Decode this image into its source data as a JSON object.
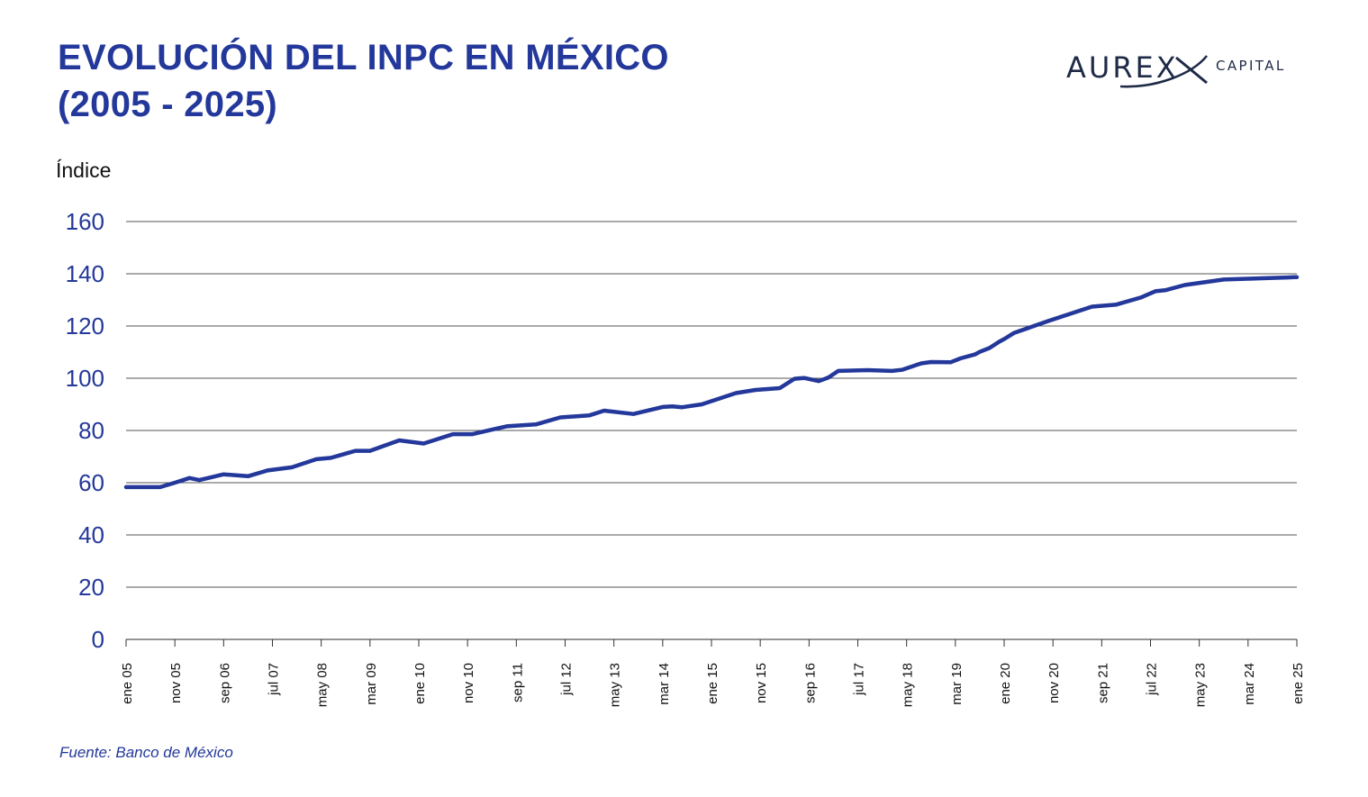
{
  "header": {
    "title_line1": "EVOLUCIÓN DEL INPC EN MÉXICO",
    "title_line2": "(2005 - 2025)"
  },
  "logo": {
    "main_text": "AUREX",
    "sub_text": "CAPITAL",
    "color": "#1e2a46"
  },
  "colors": {
    "title": "#23389a",
    "series": "#23389a",
    "tick": "#23389a",
    "grid": "#555555",
    "axis_label": "#111111"
  },
  "chart_data": {
    "type": "line",
    "title": "EVOLUCIÓN DEL INPC EN MÉXICO (2005 - 2025)",
    "xlabel": "",
    "ylabel": "Índice",
    "ylim": [
      0,
      160
    ],
    "yticks": [
      0,
      20,
      40,
      60,
      80,
      100,
      120,
      140,
      160
    ],
    "grid": true,
    "x_range_months": [
      0,
      240
    ],
    "xtick_months": [
      0,
      10,
      20,
      30,
      40,
      50,
      60,
      70,
      80,
      90,
      100,
      110,
      120,
      130,
      140,
      150,
      160,
      170,
      180,
      190,
      200,
      210,
      220,
      230,
      240
    ],
    "xtick_labels": [
      "ene 05",
      "nov 05",
      "sep 06",
      "jul 07",
      "may 08",
      "mar 09",
      "ene 10",
      "nov 10",
      "sep 11",
      "jul 12",
      "may 13",
      "mar 14",
      "ene 15",
      "nov 15",
      "sep 16",
      "jul 17",
      "may 18",
      "mar 19",
      "ene 20",
      "nov 20",
      "sep 21",
      "jul 22",
      "may 23",
      "mar 24",
      "ene 25"
    ],
    "series": [
      {
        "name": "INPC",
        "x_months": [
          0,
          7,
          10,
          13,
          15,
          17,
          20,
          25,
          29,
          34,
          39,
          42,
          47,
          50,
          56,
          61,
          67,
          71,
          75,
          78,
          84,
          89,
          95,
          98,
          104,
          110,
          112,
          114,
          118,
          125,
          129,
          134,
          137,
          139,
          142,
          143,
          144,
          146,
          152,
          157,
          159,
          163,
          165,
          169,
          171,
          174,
          175,
          177,
          179,
          180,
          182,
          189,
          198,
          203,
          208,
          211,
          213,
          217,
          225,
          238,
          239.5,
          240
        ],
        "values": [
          58.3,
          58.3,
          60.0,
          61.8,
          61.0,
          61.9,
          63.2,
          62.5,
          64.7,
          65.9,
          69.0,
          69.5,
          72.2,
          72.2,
          76.2,
          75.0,
          78.6,
          78.6,
          80.3,
          81.6,
          82.3,
          85.0,
          85.8,
          87.6,
          86.3,
          89.0,
          89.2,
          88.9,
          90.0,
          94.3,
          95.5,
          96.2,
          99.8,
          100.1,
          98.9,
          99.6,
          100.3,
          102.8,
          103.1,
          102.8,
          103.2,
          105.7,
          106.2,
          106.1,
          107.6,
          109.1,
          110.1,
          111.6,
          114.0,
          115.0,
          117.3,
          121.9,
          127.4,
          128.2,
          130.9,
          133.3,
          133.7,
          135.7,
          137.8,
          138.6,
          138.7,
          138.7
        ]
      }
    ]
  },
  "footer": {
    "source": "Fuente: Banco de México"
  }
}
